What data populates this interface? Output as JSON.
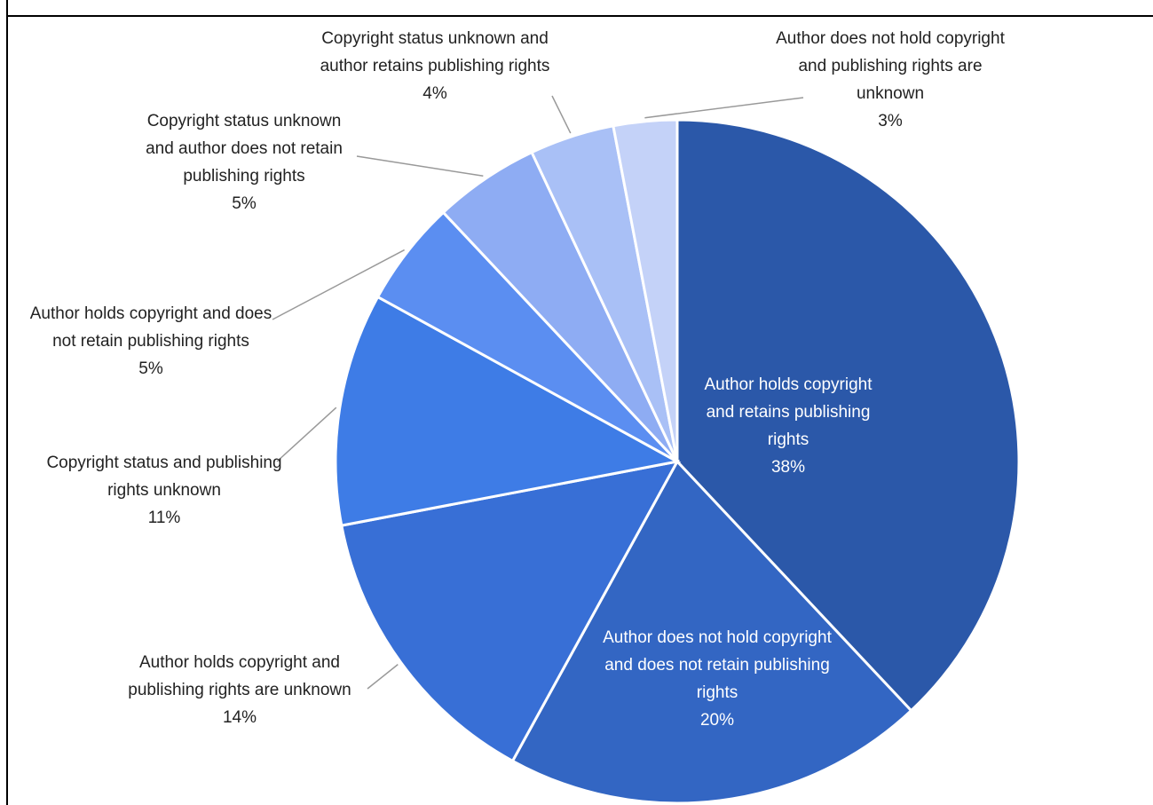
{
  "chart_data": {
    "type": "pie",
    "categories": [
      "Author holds copyright and retains publishing rights",
      "Author does not hold copyright and does not retain publishing rights",
      "Author holds copyright and publishing rights are unknown",
      "Copyright status and publishing rights unknown",
      "Author holds copyright and does not retain publishing rights",
      "Copyright status unknown and author does not retain publishing rights",
      "Copyright status unknown and author retains publishing rights",
      "Author does not hold copyright and publishing rights are unknown"
    ],
    "values": [
      38,
      20,
      14,
      11,
      5,
      5,
      4,
      3
    ],
    "value_labels": [
      "38%",
      "20%",
      "14%",
      "11%",
      "5%",
      "5%",
      "4%",
      "3%"
    ],
    "colors": [
      "#2b58a9",
      "#3366c3",
      "#386fd6",
      "#3e7ce6",
      "#5b8ef1",
      "#8eacf3",
      "#a9c0f6",
      "#c4d2f8"
    ]
  }
}
